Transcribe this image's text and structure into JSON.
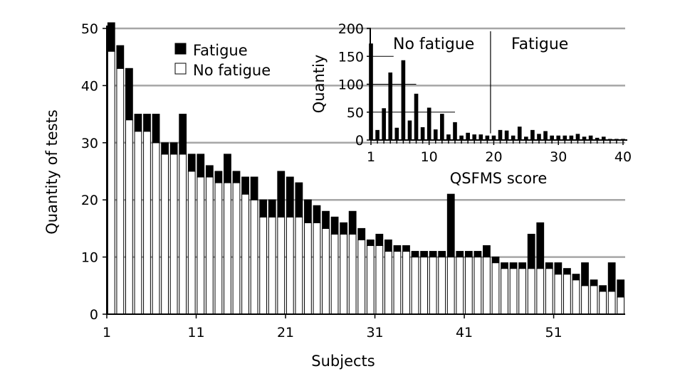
{
  "chart_data": [
    {
      "type": "bar",
      "stacked": true,
      "xlabel": "Subjects",
      "ylabel": "Quantity of tests",
      "ylim": [
        0,
        50
      ],
      "yticks": [
        0,
        10,
        20,
        30,
        40,
        50
      ],
      "xticks": [
        "1",
        "11",
        "21",
        "31",
        "41",
        "51"
      ],
      "grid": [
        10,
        20,
        30,
        40,
        50
      ],
      "legend": {
        "position": "top-left",
        "fatigue_label": "Fatigue",
        "no_fatigue_label": "No fatigue"
      },
      "colors": {
        "fatigue": "#000000",
        "no_fatigue": "#ffffff",
        "grid": "#a6a6a6"
      },
      "x": [
        1,
        2,
        3,
        4,
        5,
        6,
        7,
        8,
        9,
        10,
        11,
        12,
        13,
        14,
        15,
        16,
        17,
        18,
        19,
        20,
        21,
        22,
        23,
        24,
        25,
        26,
        27,
        28,
        29,
        30,
        31,
        32,
        33,
        34,
        35,
        36,
        37,
        38,
        39,
        40,
        41,
        42,
        43,
        44,
        45,
        46,
        47,
        48,
        49,
        50,
        51,
        52,
        53,
        54,
        55,
        56,
        57,
        58
      ],
      "series": [
        {
          "name": "No fatigue",
          "values": [
            46,
            43,
            34,
            32,
            32,
            30,
            28,
            28,
            28,
            25,
            24,
            24,
            23,
            23,
            23,
            21,
            20,
            17,
            17,
            17,
            17,
            17,
            16,
            16,
            15,
            14,
            14,
            14,
            13,
            12,
            12,
            11,
            11,
            11,
            10,
            10,
            10,
            10,
            10,
            10,
            10,
            10,
            10,
            9,
            8,
            8,
            8,
            8,
            8,
            8,
            7,
            7,
            6,
            5,
            5,
            4,
            4,
            3
          ]
        },
        {
          "name": "Fatigue",
          "values": [
            5,
            4,
            9,
            3,
            3,
            5,
            2,
            2,
            7,
            3,
            4,
            2,
            2,
            5,
            2,
            3,
            4,
            3,
            3,
            8,
            7,
            6,
            4,
            3,
            3,
            3,
            2,
            4,
            2,
            1,
            2,
            2,
            1,
            1,
            1,
            1,
            1,
            1,
            11,
            1,
            1,
            1,
            2,
            1,
            1,
            1,
            1,
            6,
            8,
            1,
            2,
            1,
            1,
            4,
            1,
            1,
            5,
            3
          ]
        }
      ]
    },
    {
      "type": "bar",
      "inset": true,
      "xlabel": "QSFMS score",
      "ylabel": "Quantiy",
      "ylim": [
        0,
        200
      ],
      "xlim": [
        1,
        40
      ],
      "yticks": [
        0,
        50,
        100,
        150,
        200
      ],
      "xticks": [
        "1",
        "10",
        "20",
        "30",
        "40"
      ],
      "threshold": 20,
      "threshold_lines": [
        {
          "x_end": 4.5,
          "y": 150
        },
        {
          "x_end": 8,
          "y": 100
        },
        {
          "x_end": 14,
          "y": 50
        }
      ],
      "regions": {
        "left": "No fatigue",
        "right": "Fatigue"
      },
      "categories": [
        1,
        2,
        3,
        4,
        5,
        6,
        7,
        8,
        9,
        10,
        11,
        12,
        13,
        14,
        15,
        16,
        17,
        18,
        19,
        20,
        21,
        22,
        23,
        24,
        25,
        26,
        27,
        28,
        29,
        30,
        31,
        32,
        33,
        34,
        35,
        36,
        37,
        38,
        39,
        40
      ],
      "values": [
        173,
        18,
        57,
        121,
        22,
        143,
        35,
        83,
        23,
        58,
        19,
        47,
        10,
        32,
        8,
        13,
        10,
        10,
        8,
        8,
        18,
        17,
        8,
        24,
        6,
        18,
        11,
        16,
        8,
        8,
        8,
        8,
        11,
        6,
        8,
        4,
        6,
        2,
        2,
        2
      ]
    }
  ]
}
